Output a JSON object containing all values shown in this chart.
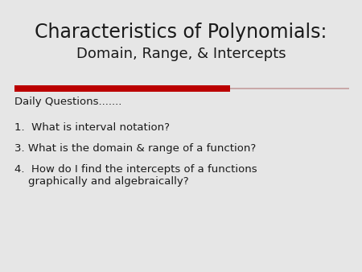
{
  "title_line1": "Characteristics of Polynomials:",
  "title_line2": "Domain, Range, & Intercepts",
  "background_color": "#e6e6e6",
  "title_color": "#1a1a1a",
  "text_color": "#1a1a1a",
  "red_bar_color": "#bb0000",
  "pink_bar_color": "#c9a8a8",
  "section_label": "Daily Questions.......",
  "items": [
    "1.  What is interval notation?",
    "3. What is the domain & range of a function?",
    "4.  How do I find the intercepts of a functions\n    graphically and algebraically?"
  ],
  "title_fontsize": 17,
  "subtitle_fontsize": 13,
  "label_fontsize": 9.5,
  "item_fontsize": 9.5
}
